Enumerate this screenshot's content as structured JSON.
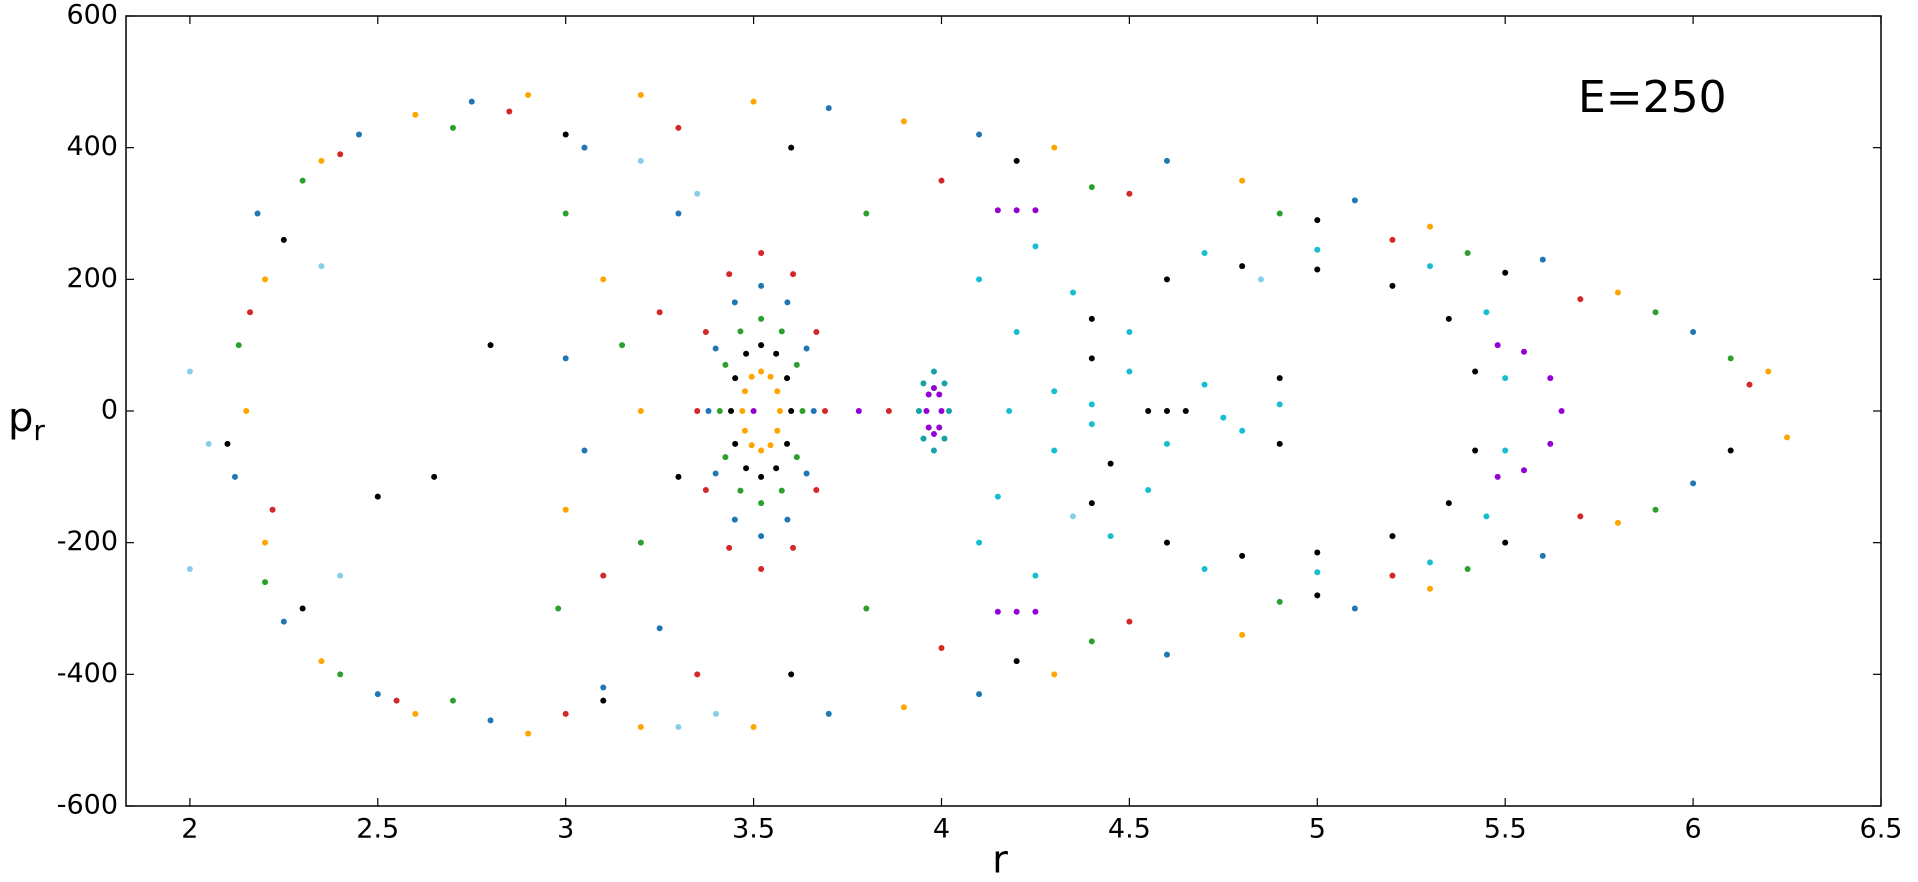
{
  "chart_data": {
    "type": "scatter",
    "xlabel": "r",
    "ylabel": {
      "text": "p",
      "subscript": "r"
    },
    "annotation": "E=250",
    "xlim": [
      1.83,
      6.5
    ],
    "ylim": [
      -600,
      600
    ],
    "xticks": [
      2,
      2.5,
      3,
      3.5,
      4,
      4.5,
      5,
      5.5,
      6,
      6.5
    ],
    "yticks": [
      -600,
      -400,
      -200,
      0,
      200,
      400,
      600
    ],
    "series": [
      {
        "color": "#ffa500",
        "x": [
          2.15,
          2.2,
          2.2,
          2.35,
          2.35,
          2.6,
          2.6,
          2.9,
          2.9,
          3.2,
          3.2,
          3.5,
          3.5,
          3.9,
          3.9,
          4.3,
          4.3,
          4.8,
          4.8,
          5.3,
          5.3,
          5.8,
          5.8,
          6.2,
          6.25,
          3.1,
          3.0,
          3.2
        ],
        "y": [
          0,
          200,
          -200,
          380,
          -380,
          450,
          -460,
          480,
          -490,
          480,
          -480,
          470,
          -480,
          440,
          -450,
          400,
          -400,
          350,
          -340,
          280,
          -270,
          180,
          -170,
          60,
          -40,
          200,
          -150,
          0
        ]
      },
      {
        "color": "#1f77b4",
        "x": [
          2.12,
          2.18,
          2.25,
          2.45,
          2.5,
          2.75,
          2.8,
          3.05,
          3.1,
          3.3,
          3.25,
          3.0,
          3.05,
          3.7,
          3.7,
          4.1,
          4.1,
          4.6,
          4.6,
          5.1,
          5.1,
          5.6,
          5.6,
          6.0,
          6.0
        ],
        "y": [
          -100,
          300,
          -320,
          420,
          -430,
          470,
          -470,
          400,
          -420,
          300,
          -330,
          80,
          -60,
          460,
          -460,
          420,
          -430,
          380,
          -370,
          320,
          -300,
          230,
          -220,
          120,
          -110
        ]
      },
      {
        "color": "#2ca02c",
        "x": [
          2.13,
          2.2,
          2.3,
          2.4,
          2.7,
          2.7,
          3.0,
          2.98,
          3.15,
          3.2,
          3.8,
          3.8,
          4.4,
          4.4,
          4.9,
          4.9,
          5.4,
          5.4,
          5.9,
          5.9,
          6.1
        ],
        "y": [
          100,
          -260,
          350,
          -400,
          430,
          -440,
          300,
          -300,
          100,
          -200,
          300,
          -300,
          340,
          -350,
          300,
          -290,
          240,
          -240,
          150,
          -150,
          80
        ]
      },
      {
        "color": "#d62728",
        "x": [
          2.16,
          2.22,
          2.4,
          2.55,
          2.85,
          3.0,
          3.3,
          3.35,
          3.1,
          3.25,
          3.86,
          4.0,
          4.0,
          4.5,
          4.5,
          5.2,
          5.2,
          5.7,
          5.7,
          6.15
        ],
        "y": [
          150,
          -150,
          390,
          -440,
          455,
          -460,
          430,
          -400,
          -250,
          150,
          0,
          350,
          -360,
          330,
          -320,
          260,
          -250,
          170,
          -160,
          40
        ]
      },
      {
        "color": "#000000",
        "x": [
          2.1,
          2.25,
          2.3,
          2.65,
          2.8,
          2.5,
          3.0,
          3.1,
          3.3,
          3.6,
          3.6,
          4.2,
          4.2,
          5.0,
          5.0,
          5.5,
          5.5,
          6.1
        ],
        "y": [
          -50,
          260,
          -300,
          -100,
          100,
          -130,
          420,
          -440,
          -100,
          400,
          -400,
          380,
          -380,
          290,
          -280,
          210,
          -200,
          -60
        ]
      },
      {
        "color": "#87ceeb",
        "x": [
          2.35,
          2.4,
          3.3,
          3.4,
          3.35,
          3.2,
          4.85,
          4.35,
          2.0,
          2.05,
          2.0
        ],
        "y": [
          220,
          -250,
          -480,
          -460,
          330,
          380,
          200,
          -160,
          -240,
          -50,
          60
        ]
      },
      {
        "color": "#d62728",
        "x": [
          3.69,
          3.667,
          3.605,
          3.52,
          3.435,
          3.373,
          3.35,
          3.373,
          3.435,
          3.52,
          3.605,
          3.667
        ],
        "y": [
          0,
          120,
          208,
          240,
          208,
          120,
          0,
          -120,
          -208,
          -240,
          -208,
          -120
        ]
      },
      {
        "color": "#1f77b4",
        "x": [
          3.66,
          3.641,
          3.59,
          3.52,
          3.45,
          3.399,
          3.38,
          3.399,
          3.45,
          3.52,
          3.59,
          3.641
        ],
        "y": [
          0,
          95,
          165,
          190,
          165,
          95,
          0,
          -95,
          -165,
          -190,
          -165,
          -95
        ]
      },
      {
        "color": "#2ca02c",
        "x": [
          3.63,
          3.615,
          3.575,
          3.52,
          3.465,
          3.425,
          3.41,
          3.425,
          3.465,
          3.52,
          3.575,
          3.615
        ],
        "y": [
          0,
          70,
          121,
          140,
          121,
          70,
          0,
          -70,
          -121,
          -140,
          -121,
          -70
        ]
      },
      {
        "color": "#000000",
        "x": [
          3.6,
          3.589,
          3.56,
          3.52,
          3.48,
          3.451,
          3.44,
          3.451,
          3.48,
          3.52,
          3.56,
          3.589
        ],
        "y": [
          0,
          50,
          87,
          100,
          87,
          50,
          0,
          -50,
          -87,
          -100,
          -87,
          -50
        ]
      },
      {
        "color": "#ffa500",
        "x": [
          3.57,
          3.563,
          3.545,
          3.52,
          3.495,
          3.477,
          3.47,
          3.477,
          3.495,
          3.52,
          3.545,
          3.563
        ],
        "y": [
          0,
          30,
          52,
          60,
          52,
          30,
          0,
          -30,
          -52,
          -60,
          -52,
          -30
        ]
      },
      {
        "color": "#17a2a8",
        "x": [
          4.02,
          4.008,
          3.98,
          3.952,
          3.94,
          3.952,
          3.98,
          4.008
        ],
        "y": [
          0,
          42,
          60,
          42,
          0,
          -42,
          -60,
          -42
        ]
      },
      {
        "color": "#9400d3",
        "x": [
          4.0,
          3.994,
          3.98,
          3.966,
          3.96,
          3.966,
          3.98,
          3.994,
          5.65,
          5.62,
          5.55,
          5.62,
          5.55,
          5.48,
          5.48,
          4.15,
          4.2,
          4.25,
          4.15,
          4.2,
          4.25,
          3.78,
          3.5
        ],
        "y": [
          0,
          25,
          35,
          25,
          0,
          -25,
          -35,
          -25,
          0,
          50,
          90,
          -50,
          -90,
          100,
          -100,
          305,
          305,
          305,
          -305,
          -305,
          -305,
          0,
          0
        ]
      },
      {
        "color": "#17becf",
        "x": [
          4.3,
          4.4,
          4.5,
          4.6,
          4.7,
          4.8,
          4.9,
          4.3,
          4.2,
          4.15,
          4.35,
          4.45,
          4.7,
          5.0,
          5.3,
          5.45,
          5.5,
          5.5,
          5.45,
          5.3,
          5.0,
          4.7,
          4.25,
          4.1,
          4.1,
          4.25,
          4.5,
          4.55,
          4.4,
          4.75,
          4.18
        ],
        "y": [
          30,
          -20,
          60,
          -50,
          40,
          -30,
          10,
          -60,
          120,
          -130,
          180,
          -190,
          240,
          245,
          220,
          150,
          50,
          -60,
          -160,
          -230,
          -245,
          -240,
          250,
          200,
          -200,
          -250,
          120,
          -120,
          10,
          -10,
          0
        ]
      },
      {
        "color": "#000000",
        "x": [
          4.4,
          4.6,
          4.8,
          5.0,
          5.2,
          5.35,
          5.42,
          5.42,
          5.35,
          5.2,
          5.0,
          4.8,
          4.6,
          4.4,
          4.45,
          4.4,
          4.9,
          4.9,
          4.55,
          4.6,
          4.65
        ],
        "y": [
          140,
          200,
          220,
          215,
          190,
          140,
          60,
          -60,
          -140,
          -190,
          -215,
          -220,
          -200,
          -140,
          -80,
          80,
          50,
          -50,
          0,
          0,
          0
        ]
      }
    ]
  }
}
